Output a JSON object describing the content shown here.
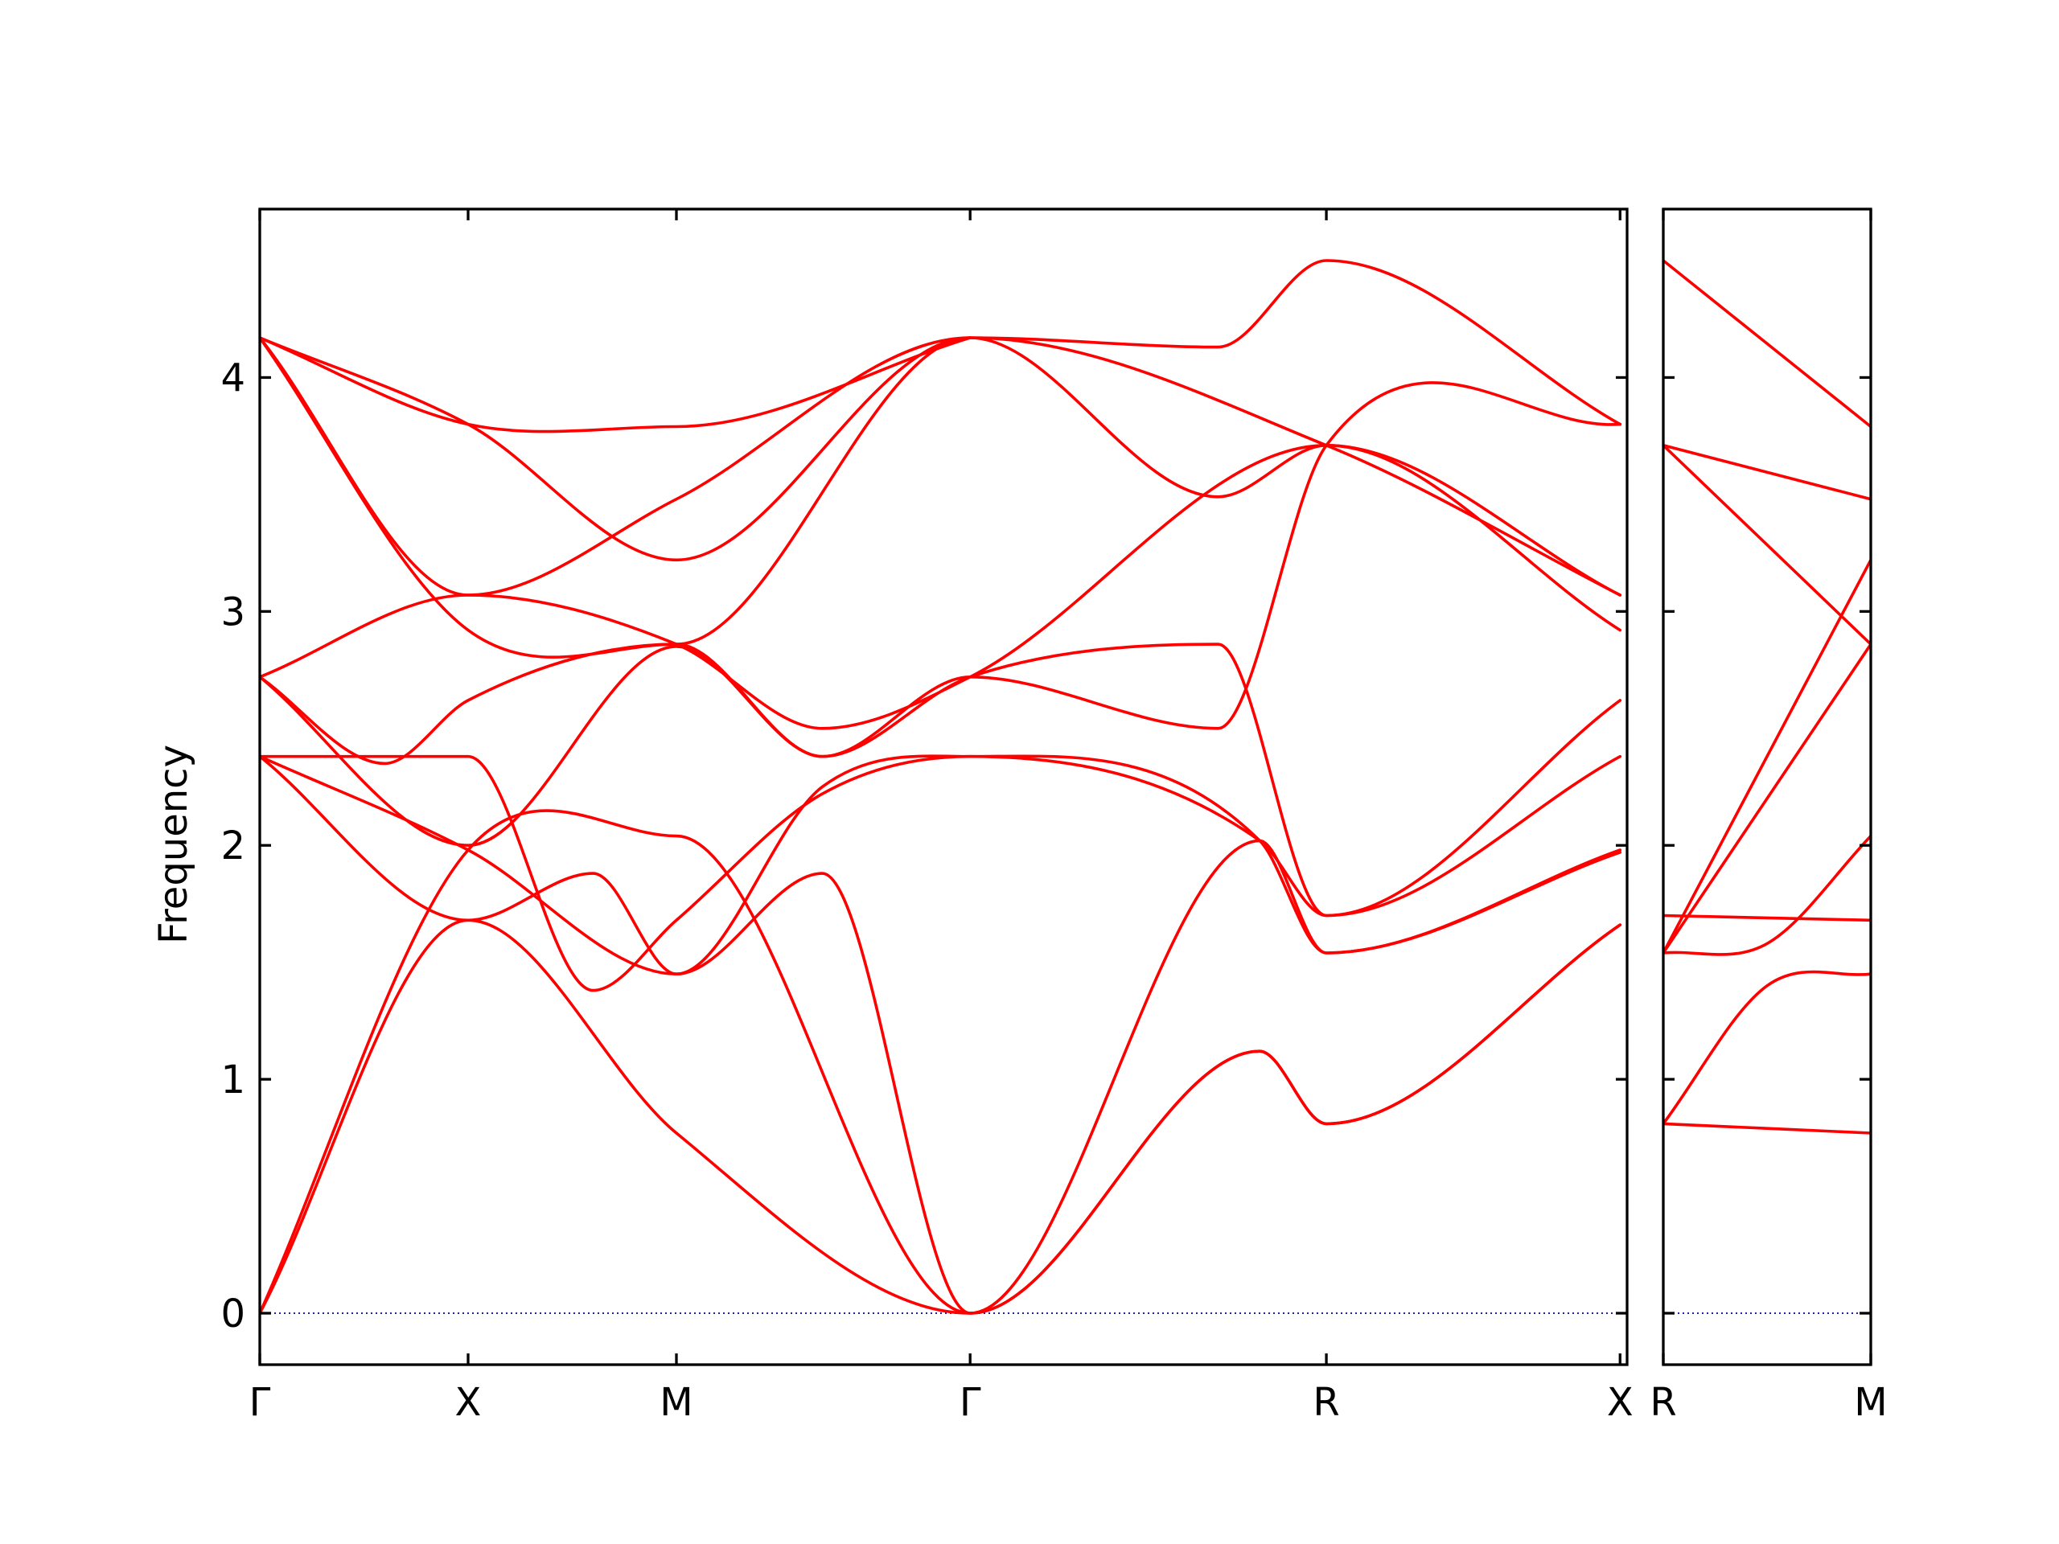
{
  "chart_data": {
    "type": "line",
    "ylabel": "Frequency",
    "ylim": [
      -0.22,
      4.72
    ],
    "yticks": [
      0,
      1,
      2,
      3,
      4
    ],
    "grid": false,
    "legend": "none",
    "colors": {
      "bands": "#ff0000",
      "zero_line": "#0000aa",
      "axes": "#000000"
    },
    "panels": [
      {
        "name": "main",
        "xlim": [
          0,
          5.87
        ],
        "xticks": [
          {
            "pos": 0,
            "label": "Γ"
          },
          {
            "pos": 1,
            "label": "X"
          },
          {
            "pos": 2,
            "label": "M"
          },
          {
            "pos": 3.41,
            "label": "Γ"
          },
          {
            "pos": 5.12,
            "label": "R"
          },
          {
            "pos": 6.53,
            "label": "X"
          }
        ],
        "bands": [
          {
            "x": [
              0,
              1,
              2,
              3.41,
              4.8,
              5.12,
              6.53
            ],
            "y": [
              0,
              1.98,
              2.04,
              0,
              1.12,
              0.81,
              1.66
            ]
          },
          {
            "x": [
              0,
              1,
              2,
              3.41,
              4.8,
              5.12,
              6.53
            ],
            "y": [
              0,
              1.68,
              0.77,
              0,
              1.12,
              0.81,
              1.66
            ]
          },
          {
            "x": [
              0,
              1,
              1.6,
              2,
              2.7,
              3.41,
              4.8,
              5.12,
              6.53
            ],
            "y": [
              2.38,
              1.68,
              1.88,
              1.45,
              1.88,
              0,
              2.02,
              1.54,
              1.98
            ]
          },
          {
            "x": [
              0,
              1,
              2,
              2.7,
              3.41,
              4.8,
              5.12,
              6.53
            ],
            "y": [
              2.38,
              1.98,
              1.45,
              2.25,
              2.38,
              2.02,
              1.54,
              1.97
            ]
          },
          {
            "x": [
              0,
              1,
              1.6,
              2,
              2.7,
              3.41,
              4.8,
              5.12,
              6.53
            ],
            "y": [
              2.38,
              2.38,
              1.38,
              1.68,
              2.22,
              2.38,
              2.02,
              1.7,
              2.38
            ]
          },
          {
            "x": [
              0,
              1,
              2,
              2.7,
              3.41,
              4.6,
              5.12,
              6.53
            ],
            "y": [
              2.72,
              2.0,
              2.85,
              2.38,
              2.72,
              2.5,
              3.71,
              3.8
            ]
          },
          {
            "x": [
              0,
              0.6,
              1,
              2,
              2.7,
              3.41,
              4.6,
              5.12,
              6.53
            ],
            "y": [
              2.72,
              2.35,
              2.62,
              2.86,
              2.38,
              2.72,
              2.86,
              1.7,
              2.62
            ]
          },
          {
            "x": [
              0,
              1,
              2,
              2.7,
              3.41,
              5.12,
              6.53
            ],
            "y": [
              2.72,
              3.07,
              2.86,
              2.5,
              2.72,
              3.71,
              2.92
            ]
          },
          {
            "x": [
              0,
              1,
              2,
              3.41,
              5.12,
              6.53
            ],
            "y": [
              4.17,
              2.92,
              2.86,
              4.17,
              3.71,
              3.07
            ]
          },
          {
            "x": [
              0,
              1,
              2,
              3.41,
              4.6,
              5.12,
              6.53
            ],
            "y": [
              4.17,
              3.07,
              3.48,
              4.17,
              3.49,
              3.71,
              3.07
            ]
          },
          {
            "x": [
              0,
              1,
              2,
              3.41,
              4.6,
              5.12,
              6.53
            ],
            "y": [
              4.17,
              3.8,
              3.22,
              4.17,
              4.13,
              4.5,
              3.8
            ]
          },
          {
            "x": [
              0,
              1,
              2,
              3.41
            ],
            "y": [
              4.17,
              3.8,
              3.79,
              4.17
            ]
          }
        ]
      },
      {
        "name": "right",
        "xticks": [
          {
            "pos": 0,
            "label": "R"
          },
          {
            "pos": 1,
            "label": "M"
          }
        ],
        "bands": [
          {
            "x": [
              0,
              1
            ],
            "y": [
              0.81,
              0.77
            ]
          },
          {
            "x": [
              0,
              0.5,
              1
            ],
            "y": [
              0.81,
              1.4,
              1.45
            ]
          },
          {
            "x": [
              0,
              0.5,
              1
            ],
            "y": [
              1.54,
              1.58,
              2.04
            ]
          },
          {
            "x": [
              0,
              1
            ],
            "y": [
              1.54,
              2.86
            ]
          },
          {
            "x": [
              0,
              1
            ],
            "y": [
              1.7,
              1.68
            ]
          },
          {
            "x": [
              0,
              1
            ],
            "y": [
              1.54,
              3.22
            ]
          },
          {
            "x": [
              0,
              1
            ],
            "y": [
              3.71,
              2.86
            ]
          },
          {
            "x": [
              0,
              1
            ],
            "y": [
              3.71,
              3.48
            ]
          },
          {
            "x": [
              0,
              1
            ],
            "y": [
              4.5,
              3.79
            ]
          }
        ]
      }
    ]
  }
}
